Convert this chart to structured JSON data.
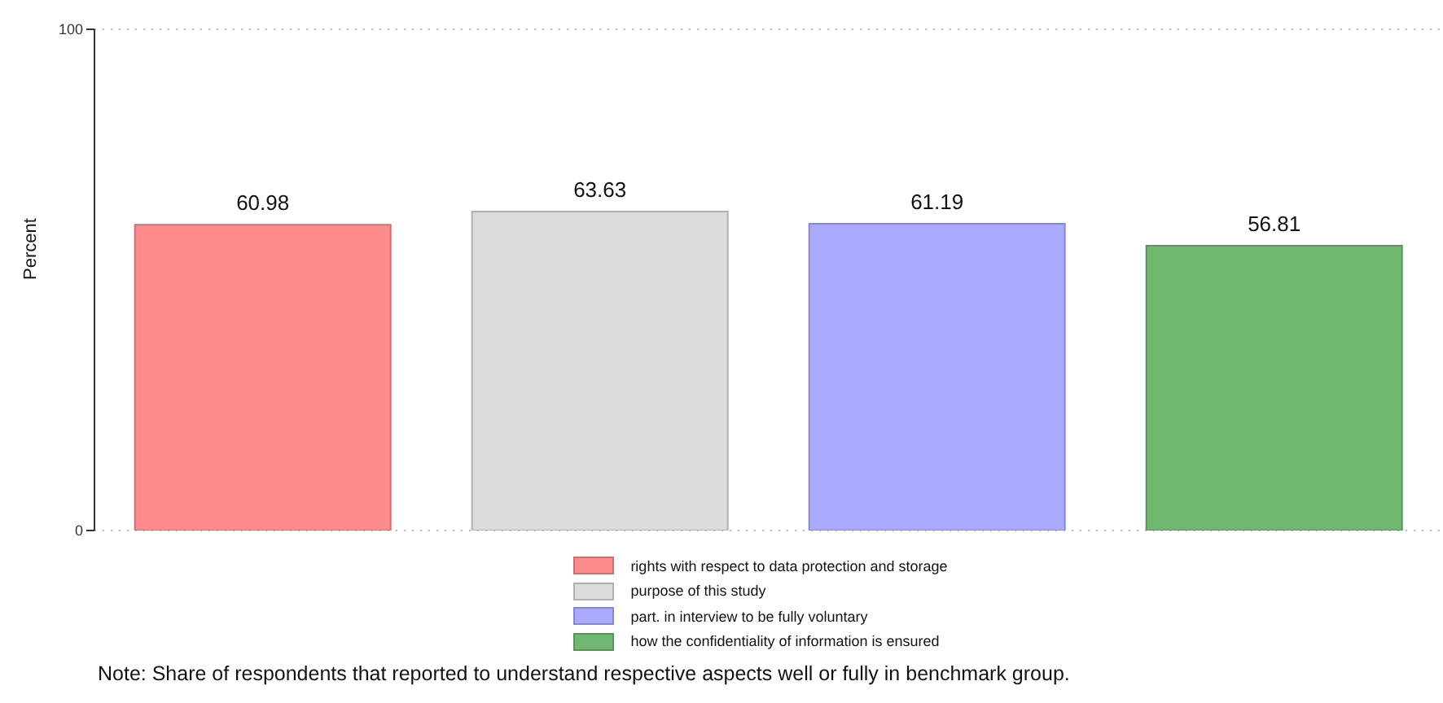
{
  "chart_data": {
    "type": "bar",
    "ylabel": "Percent",
    "categories": [
      null,
      null,
      null,
      null
    ],
    "series": [
      {
        "name": "rights with respect to data protection and storage",
        "color": "#ff8c8c",
        "values": [
          60.98,
          null,
          null,
          null
        ]
      },
      {
        "name": "purpose of this study",
        "color": "#dcdcdc",
        "values": [
          null,
          63.63,
          null,
          null
        ]
      },
      {
        "name": "part. in interview to be fully voluntary",
        "color": "#aaaaff",
        "values": [
          null,
          null,
          61.19,
          null
        ]
      },
      {
        "name": "how the confidentiality of information is ensured",
        "color": "#70b870",
        "values": [
          null,
          null,
          null,
          56.81
        ]
      }
    ],
    "ylim": [
      0,
      100
    ],
    "yticks": [
      0,
      100
    ],
    "grid": "y",
    "data_labels": true,
    "legend": "bottom",
    "annotations": [
      "Note: Share of respondents that reported to understand respective aspects well or fully in benchmark group."
    ]
  }
}
